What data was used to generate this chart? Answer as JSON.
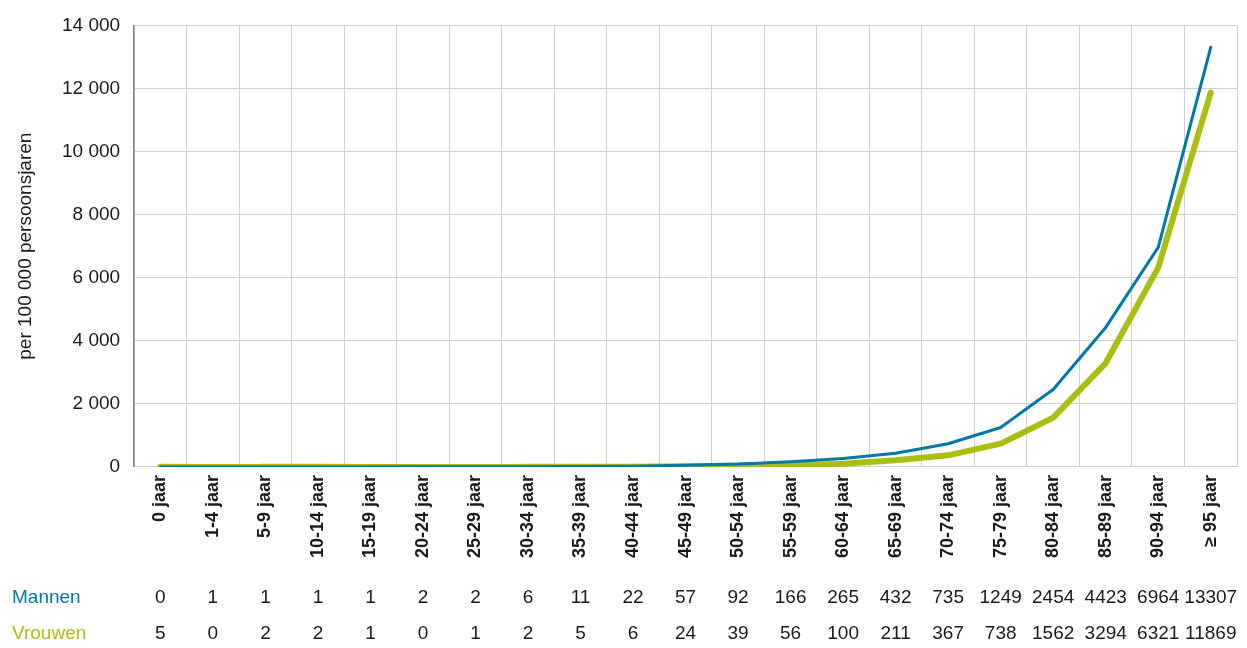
{
  "chart_data": {
    "type": "line",
    "ylabel": "per 100 000 persoonsjaren",
    "categories": [
      "0 jaar",
      "1-4 jaar",
      "5-9 jaar",
      "10-14 jaar",
      "15-19 jaar",
      "20-24 jaar",
      "25-29 jaar",
      "30-34 jaar",
      "35-39 jaar",
      "40-44 jaar",
      "45-49 jaar",
      "50-54 jaar",
      "55-59 jaar",
      "60-64 jaar",
      "65-69 jaar",
      "70-74 jaar",
      "75-79 jaar",
      "80-84 jaar",
      "85-89 jaar",
      "90-94 jaar",
      "≥ 95 jaar"
    ],
    "series": [
      {
        "name": "Mannen",
        "color": "#0078a8",
        "values": [
          0,
          1,
          1,
          1,
          1,
          2,
          2,
          6,
          11,
          22,
          57,
          92,
          166,
          265,
          432,
          735,
          1249,
          2454,
          4423,
          6964,
          13307
        ]
      },
      {
        "name": "Vrouwen",
        "color": "#a9c012",
        "values": [
          5,
          0,
          2,
          2,
          1,
          0,
          1,
          2,
          5,
          6,
          24,
          39,
          56,
          100,
          211,
          367,
          738,
          1562,
          3294,
          6321,
          11869
        ]
      }
    ],
    "ylim": [
      0,
      14000
    ],
    "yticks": [
      0,
      {
        "value": 2000,
        "label": "2 000"
      },
      {
        "value": 4000,
        "label": "4 000"
      },
      {
        "value": 6000,
        "label": "6 000"
      },
      {
        "value": 8000,
        "label": "8 000"
      },
      {
        "value": 10000,
        "label": "10 000"
      },
      {
        "value": 12000,
        "label": "12 000"
      },
      {
        "value": 14000,
        "label": "14 000"
      }
    ],
    "grid": true,
    "legend": false,
    "marker": "none",
    "line_style": "solid",
    "data_labels": true
  }
}
